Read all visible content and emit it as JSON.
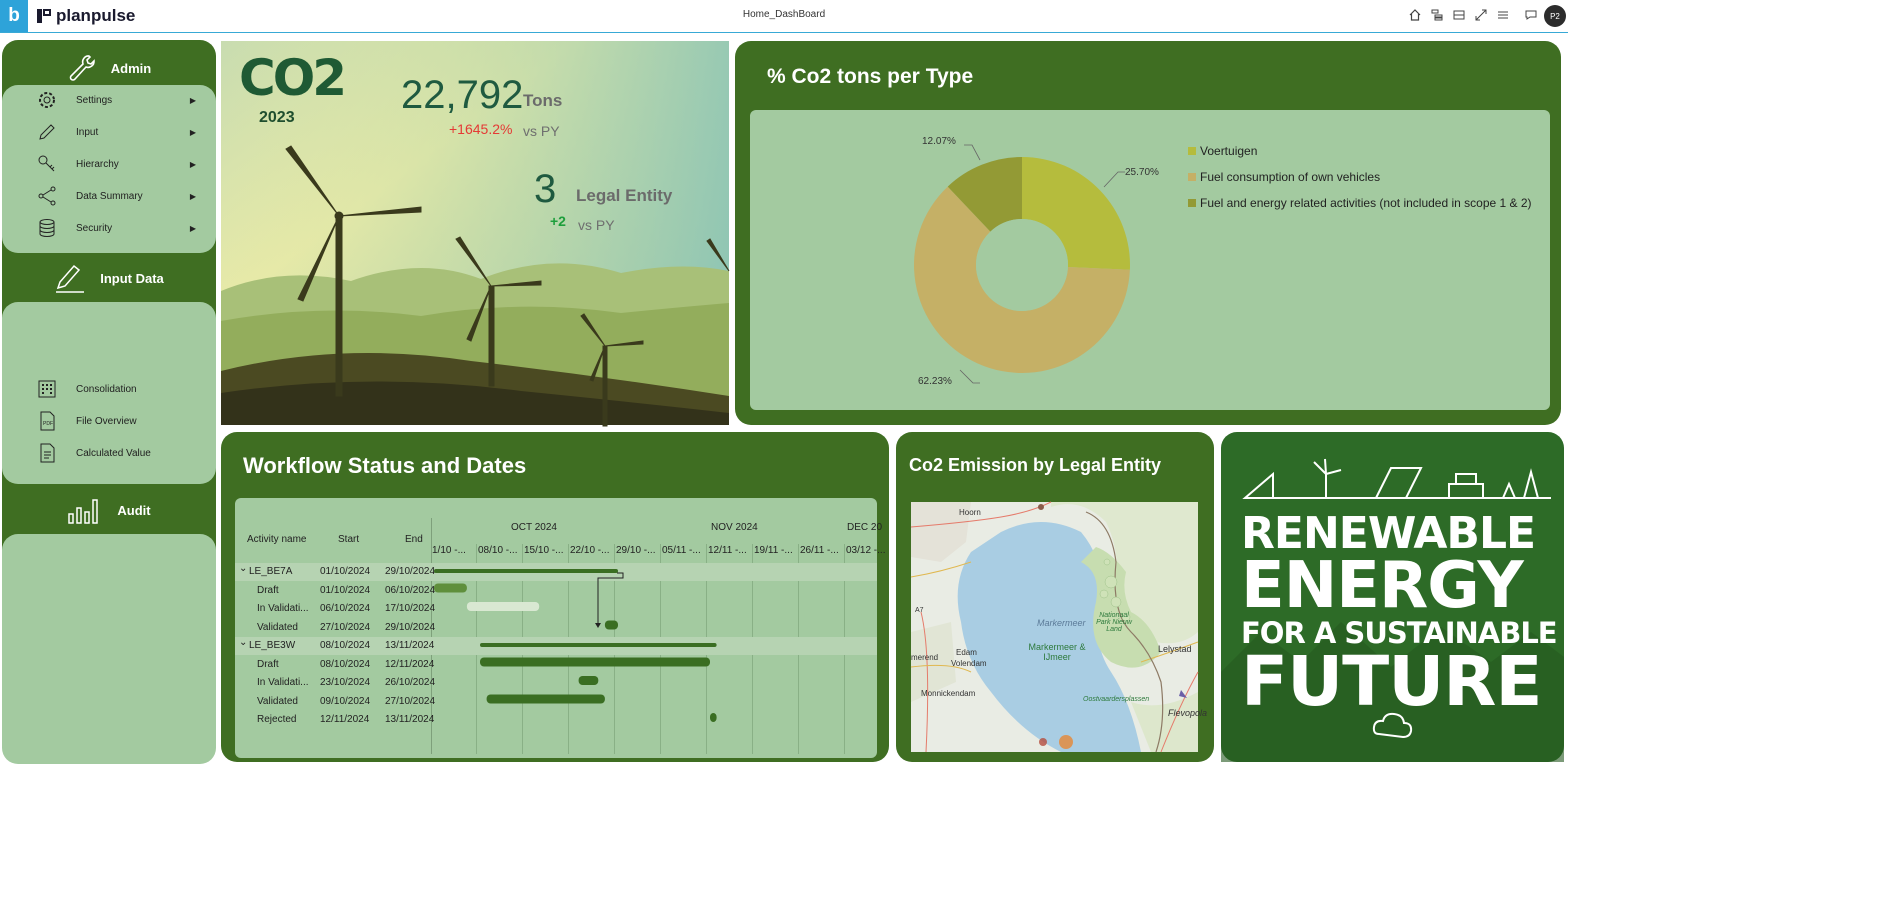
{
  "topbar": {
    "app_letter": "b",
    "brand": "planpulse",
    "title": "Home_DashBoard",
    "avatar_initials": "P2",
    "icons": [
      "home-icon",
      "tree-icon",
      "layout-icon",
      "expand-icon",
      "menu-icon",
      "chat-icon"
    ]
  },
  "sidebar": {
    "admin": {
      "title": "Admin",
      "items": [
        {
          "label": "Settings",
          "icon": "gear-icon"
        },
        {
          "label": "Input",
          "icon": "pencil-icon"
        },
        {
          "label": "Hierarchy",
          "icon": "key-icon"
        },
        {
          "label": "Data Summary",
          "icon": "share-icon"
        },
        {
          "label": "Security",
          "icon": "database-icon"
        }
      ]
    },
    "input_data": {
      "title": "Input Data",
      "items": [
        {
          "label": "Consolidation",
          "icon": "building-icon"
        },
        {
          "label": "File Overview",
          "icon": "pdf-icon"
        },
        {
          "label": "Calculated Value",
          "icon": "document-icon"
        }
      ]
    },
    "audit": {
      "title": "Audit"
    }
  },
  "hero": {
    "logo_text": "CO2",
    "year": "2023",
    "tons_value": "22,792",
    "tons_unit": "Tons",
    "tons_delta": "+1645.2%",
    "tons_vs": "vs PY",
    "entity_value": "3",
    "entity_unit": "Legal Entity",
    "entity_delta": "+2",
    "entity_vs": "vs PY",
    "colors": {
      "negative": "#e53935",
      "positive": "#1e9e3c"
    }
  },
  "chart_data": {
    "type": "pie",
    "title": "% Co2 tons per Type",
    "donut": true,
    "legend_position": "right",
    "series": [
      {
        "name": "Voertuigen",
        "value": 25.7,
        "label": "25.70%",
        "color": "#b5bc3d"
      },
      {
        "name": "Fuel consumption of own vehicles",
        "value": 62.23,
        "label": "62.23%",
        "color": "#c5b066"
      },
      {
        "name": "Fuel and energy related activities (not included in scope 1 & 2)",
        "value": 12.07,
        "label": "12.07%",
        "color": "#939a35"
      }
    ]
  },
  "workflow": {
    "title": "Workflow Status and Dates",
    "columns": {
      "activity": "Activity name",
      "start": "Start",
      "end": "End"
    },
    "months": [
      "OCT 2024",
      "NOV 2024",
      "DEC 20"
    ],
    "weeks": [
      "1/10 -...",
      "08/10 -...",
      "15/10 -...",
      "22/10 -...",
      "29/10 -...",
      "05/11 -...",
      "12/11 -...",
      "19/11 -...",
      "26/11 -...",
      "03/12 -..."
    ],
    "rows": [
      {
        "name": "LE_BE7A",
        "start": "01/10/2024",
        "end": "29/10/2024",
        "group": true
      },
      {
        "name": "Draft",
        "start": "01/10/2024",
        "end": "06/10/2024",
        "group": false
      },
      {
        "name": "In Validati...",
        "start": "06/10/2024",
        "end": "17/10/2024",
        "group": false
      },
      {
        "name": "Validated",
        "start": "27/10/2024",
        "end": "29/10/2024",
        "group": false
      },
      {
        "name": "LE_BE3W",
        "start": "08/10/2024",
        "end": "13/11/2024",
        "group": true
      },
      {
        "name": "Draft",
        "start": "08/10/2024",
        "end": "12/11/2024",
        "group": false
      },
      {
        "name": "In Validati...",
        "start": "23/10/2024",
        "end": "26/10/2024",
        "group": false
      },
      {
        "name": "Validated",
        "start": "09/10/2024",
        "end": "27/10/2024",
        "group": false
      },
      {
        "name": "Rejected",
        "start": "12/11/2024",
        "end": "13/11/2024",
        "group": false
      }
    ]
  },
  "map": {
    "title": "Co2 Emission by Legal Entity",
    "labels": {
      "hoorn": "Hoorn",
      "markermeer": "Markermeer",
      "markermeer_ijmeer": "Markermeer & IJmeer",
      "nationaal_park": "Nationaal Park Nieuw Land",
      "lelystad": "Lelystad",
      "edam": "Edam",
      "volendam": "Volendam",
      "purmerend": "merend",
      "monnickendam": "Monnickendam",
      "oostvaardersplassen": "Oostvaardersplassen",
      "flevopolder": "Flevopola",
      "road_a7": "A7"
    }
  },
  "renewable": {
    "line1": "RENEWABLE",
    "line2": "ENERGY",
    "line3": "FOR A SUSTAINABLE",
    "line4": "FUTURE"
  }
}
